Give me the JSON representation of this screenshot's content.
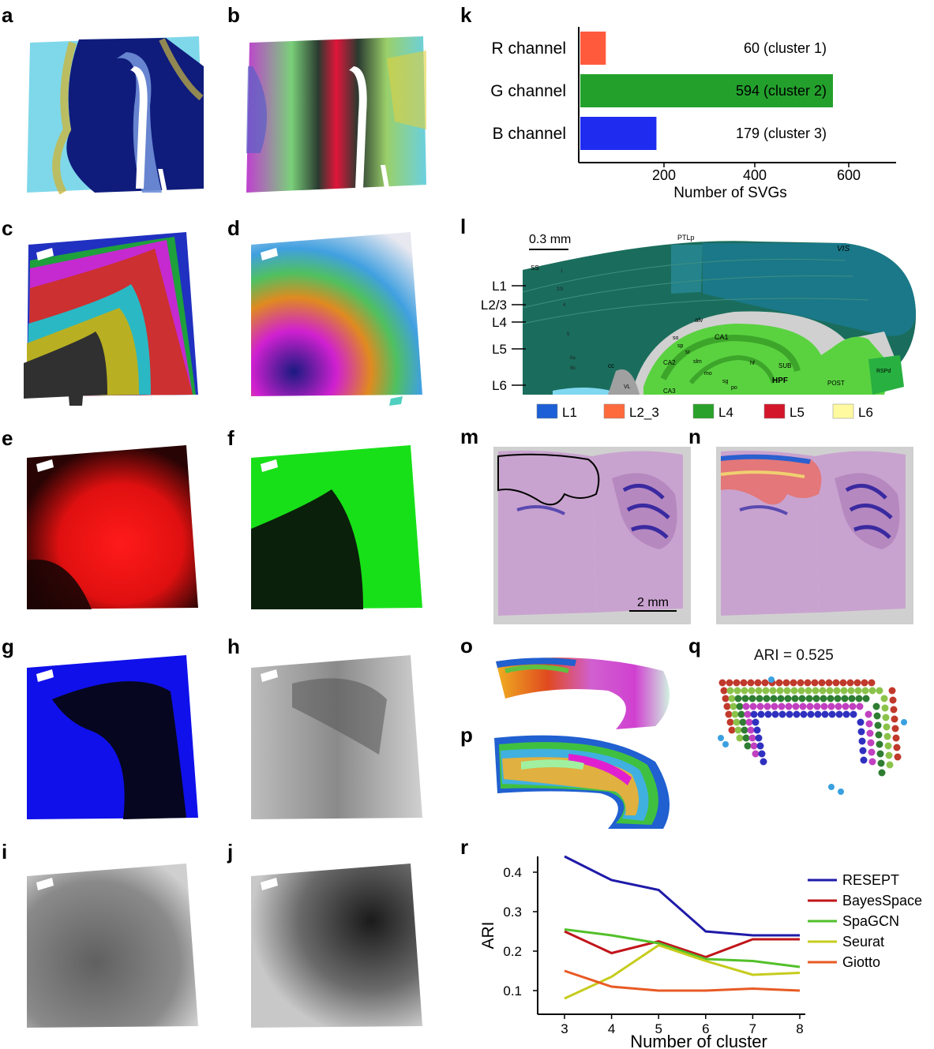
{
  "panel_labels": {
    "a": "a",
    "b": "b",
    "c": "c",
    "d": "d",
    "e": "e",
    "f": "f",
    "g": "g",
    "h": "h",
    "i": "i",
    "j": "j",
    "k": "k",
    "l": "l",
    "m": "m",
    "n": "n",
    "o": "o",
    "p": "p",
    "q": "q",
    "r": "r"
  },
  "colors": {
    "dark_blue": "#101a7a",
    "cyan": "#7fd8ea",
    "red": "#ff1a1a",
    "green": "#22e622",
    "blue": "#1010ee",
    "gray": "#9a9a9a",
    "tissue": "#c9a3cf"
  },
  "chart_k": {
    "type": "bar",
    "categories": [
      "R channel",
      "G channel",
      "B channel"
    ],
    "values": [
      60,
      594,
      179
    ],
    "value_labels": [
      "60 (cluster 1)",
      "594 (cluster 2)",
      "179 (cluster 3)"
    ],
    "colors": [
      "#ff5a3c",
      "#23a02c",
      "#1f2bef"
    ],
    "xlabel": "Number of SVGs",
    "xticks": [
      "200",
      "400",
      "600"
    ]
  },
  "panel_l": {
    "scale_bar": "0.3 mm",
    "layer_labels": [
      "L1",
      "L2/3",
      "L4",
      "L5",
      "L6"
    ],
    "region_labels": {
      "ptlp": "PTLp",
      "vis": "VIS",
      "ss": "SS",
      "alv": "alv",
      "ca1": "CA1",
      "so": "so",
      "sp": "sp",
      "sr": "sr",
      "ca2": "CA2",
      "slm": "slm",
      "mo": "mo",
      "hf": "hf",
      "sub": "SUB",
      "hpf": "HPF",
      "sg": "sg",
      "po": "po",
      "ca3": "CA3",
      "post": "POST",
      "rsp": "RSPd",
      "cc": "cc",
      "vl": "VL",
      "l23": "2/3",
      "l4": "4",
      "l5": "5",
      "l6a": "6a",
      "l6b": "6b",
      "l1": "1"
    },
    "legend": [
      {
        "label": "L1",
        "color": "#1c5fd6"
      },
      {
        "label": "L2_3",
        "color": "#ff6a3d"
      },
      {
        "label": "L4",
        "color": "#2aa12a"
      },
      {
        "label": "L5",
        "color": "#d4162a"
      },
      {
        "label": "L6",
        "color": "#fffaa0"
      }
    ]
  },
  "panel_m": {
    "scale_bar": "2 mm"
  },
  "panel_q": {
    "ari": "ARI = 0.525"
  },
  "chart_data": {
    "type": "line",
    "x": [
      3,
      4,
      5,
      6,
      7,
      8
    ],
    "xlabel": "Number of cluster",
    "ylabel": "ARI",
    "yticks": [
      "0.1",
      "0.2",
      "0.3",
      "0.4"
    ],
    "ylim": [
      0.05,
      0.45
    ],
    "series": [
      {
        "name": "RESEPT",
        "color": "#1f1aa8",
        "values": [
          0.44,
          0.38,
          0.355,
          0.25,
          0.24,
          0.24
        ]
      },
      {
        "name": "BayesSpace",
        "color": "#c0151a",
        "values": [
          0.25,
          0.195,
          0.225,
          0.185,
          0.23,
          0.23
        ]
      },
      {
        "name": "SpaGCN",
        "color": "#52c02a",
        "values": [
          0.255,
          0.24,
          0.22,
          0.18,
          0.175,
          0.16
        ]
      },
      {
        "name": "Seurat",
        "color": "#c6cc1c",
        "values": [
          0.08,
          0.135,
          0.215,
          0.175,
          0.14,
          0.145
        ]
      },
      {
        "name": "Giotto",
        "color": "#e85a24",
        "values": [
          0.15,
          0.11,
          0.1,
          0.1,
          0.105,
          0.1
        ]
      }
    ]
  }
}
